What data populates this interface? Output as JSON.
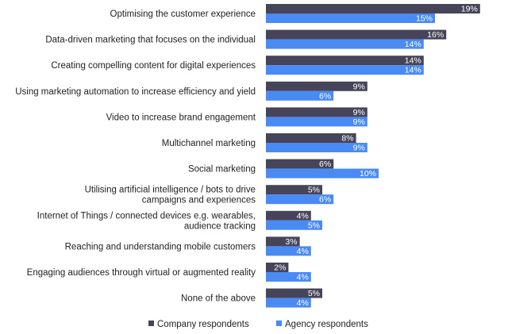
{
  "chart_data": {
    "type": "bar",
    "orientation": "horizontal",
    "title": "",
    "xlabel": "",
    "ylabel": "",
    "xlim": [
      0,
      20
    ],
    "grid": false,
    "legend_position": "bottom",
    "categories": [
      [
        "Optimising the customer experience"
      ],
      [
        "Data-driven marketing that focuses on the individual"
      ],
      [
        "Creating compelling content for digital experiences"
      ],
      [
        "Using marketing automation to increase efficiency and yield"
      ],
      [
        "Video to increase brand engagement"
      ],
      [
        "Multichannel marketing"
      ],
      [
        "Social marketing"
      ],
      [
        "Utilising artificial intelligence / bots to drive",
        "campaigns and experiences"
      ],
      [
        "Internet of Things / connected devices e.g. wearables,",
        "audience tracking"
      ],
      [
        "Reaching and understanding mobile customers"
      ],
      [
        "Engaging audiences through virtual or augmented reality"
      ],
      [
        "None of the above"
      ]
    ],
    "series": [
      {
        "name": "Company respondents",
        "color": "#454459",
        "text_color": "#ffffff",
        "values": [
          19,
          16,
          14,
          9,
          9,
          8,
          6,
          5,
          4,
          3,
          2,
          5
        ],
        "labels": [
          "19%",
          "16%",
          "14%",
          "9%",
          "9%",
          "8%",
          "6%",
          "5%",
          "4%",
          "3%",
          "2%",
          "5%"
        ]
      },
      {
        "name": "Agency respondents",
        "color": "#4a8af4",
        "text_color": "#ffffff",
        "values": [
          15,
          14,
          14,
          6,
          9,
          9,
          10,
          6,
          5,
          4,
          4,
          4
        ],
        "labels": [
          "15%",
          "14%",
          "14%",
          "6%",
          "9%",
          "9%",
          "10%",
          "6%",
          "5%",
          "4%",
          "4%",
          "4%"
        ]
      }
    ]
  }
}
